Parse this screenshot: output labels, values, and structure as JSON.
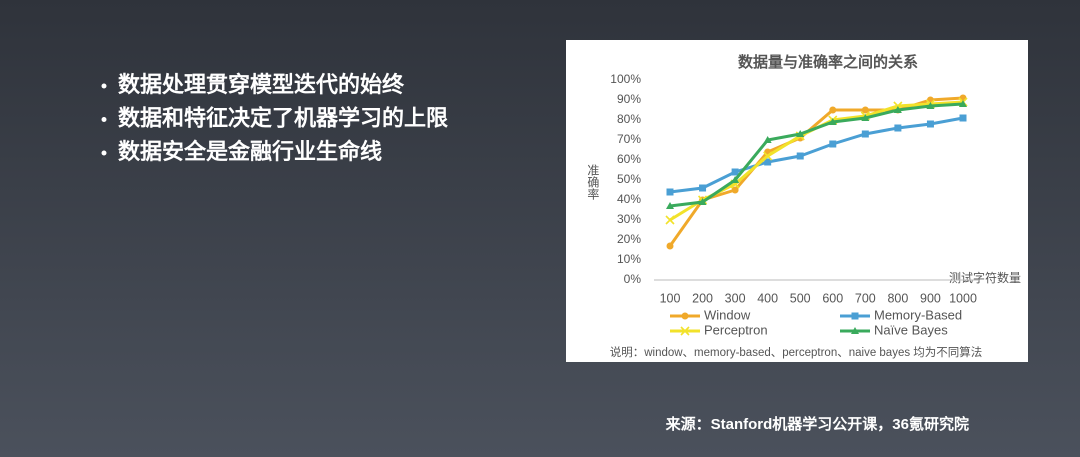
{
  "bullets": [
    "数据处理贯穿模型迭代的始终",
    "数据和特征决定了机器学习的上限",
    "数据安全是金融行业生命线"
  ],
  "source": "来源：Stanford机器学习公开课，36氪研究院",
  "chart_data": {
    "type": "line",
    "title": "数据量与准确率之间的关系",
    "x_label": "测试字符数量",
    "y_label": "准确率",
    "categories": [
      "100",
      "200",
      "300",
      "400",
      "500",
      "600",
      "700",
      "800",
      "900",
      "1000"
    ],
    "series": [
      {
        "name": "Window",
        "color": "#f0a92a",
        "marker": "circle",
        "values": [
          17,
          40,
          45,
          64,
          71,
          85,
          85,
          85,
          90,
          91
        ]
      },
      {
        "name": "Memory-Based",
        "color": "#4a9fd4",
        "marker": "square",
        "values": [
          44,
          46,
          54,
          59,
          62,
          68,
          73,
          76,
          78,
          81
        ]
      },
      {
        "name": "Perceptron",
        "color": "#f2e22a",
        "marker": "cross",
        "values": [
          30,
          40,
          48,
          62,
          72,
          80,
          82,
          87,
          88,
          89
        ]
      },
      {
        "name": "Naïve Bayes",
        "color": "#3aaa5c",
        "marker": "triangle",
        "values": [
          37,
          39,
          50,
          70,
          73,
          79,
          81,
          85,
          87,
          88
        ]
      }
    ],
    "ylim": [
      0,
      100
    ],
    "yticks": [
      {
        "value": 0,
        "label": "0%"
      },
      {
        "value": 10,
        "label": "10%"
      },
      {
        "value": 20,
        "label": "20%"
      },
      {
        "value": 30,
        "label": "30%"
      },
      {
        "value": 40,
        "label": "40%"
      },
      {
        "value": 50,
        "label": "50%"
      },
      {
        "value": 60,
        "label": "60%"
      },
      {
        "value": 70,
        "label": "70%"
      },
      {
        "value": 80,
        "label": "80%"
      },
      {
        "value": 90,
        "label": "90%"
      },
      {
        "value": 100,
        "label": "100%"
      }
    ],
    "note": "说明：window、memory-based、perceptron、naive bayes 均为不同算法"
  }
}
